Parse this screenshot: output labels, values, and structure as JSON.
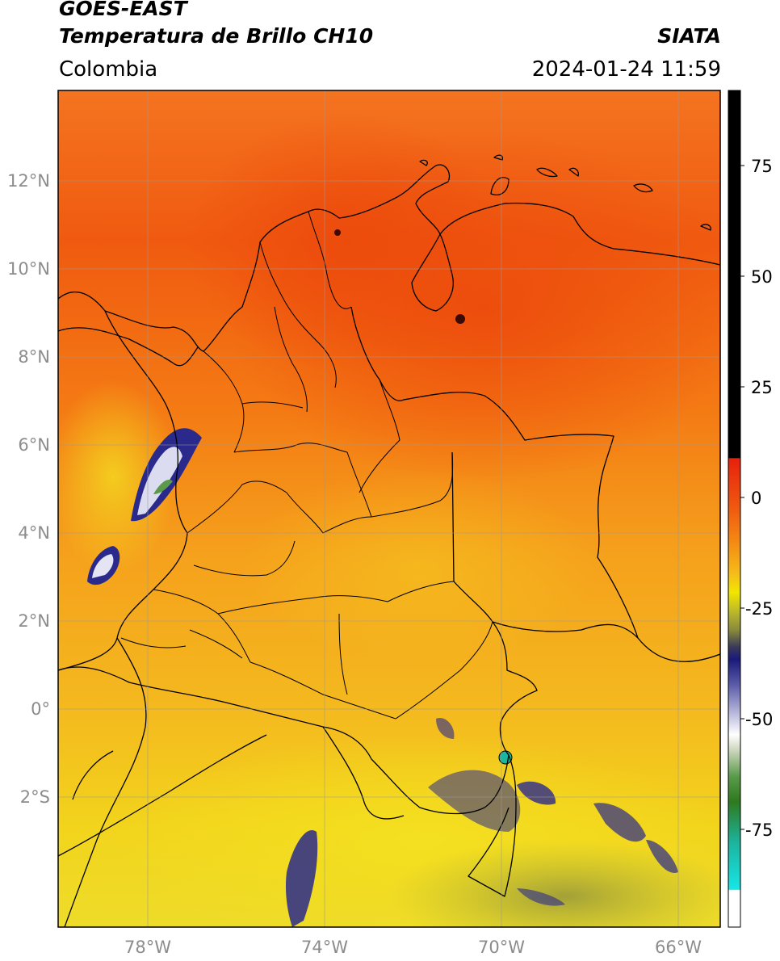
{
  "header": {
    "satellite": "GOES-EAST",
    "product": "Temperatura de Brillo CH10",
    "region": "Colombia",
    "agency": "SIATA",
    "datetime": "2024-01-24 11:59"
  },
  "axes": {
    "lat_ticks": [
      "12°N",
      "10°N",
      "8°N",
      "6°N",
      "4°N",
      "2°N",
      "0°",
      "2°S"
    ],
    "lon_ticks": [
      "78°W",
      "74°W",
      "70°W",
      "66°W"
    ]
  },
  "colorbar": {
    "ticks": [
      "75",
      "50",
      "25",
      "0",
      "-25",
      "-50",
      "-75"
    ],
    "colors": {
      "black": "#000000",
      "red": "#e8200c",
      "orange": "#f47a10",
      "yellow": "#f2e600",
      "olive": "#8a8a3a",
      "navy": "#1a1a7a",
      "white": "#ffffff",
      "green": "#2e7a1e",
      "teal": "#1bb5a0",
      "cyan": "#18e6e6"
    }
  },
  "map": {
    "colors": {
      "north": "#f05a10",
      "middle": "#f59a1a",
      "south": "#f2d21c",
      "cold_cloud": "#2a2a8c",
      "border": "#000000",
      "grid": "#9a9a9a"
    }
  }
}
